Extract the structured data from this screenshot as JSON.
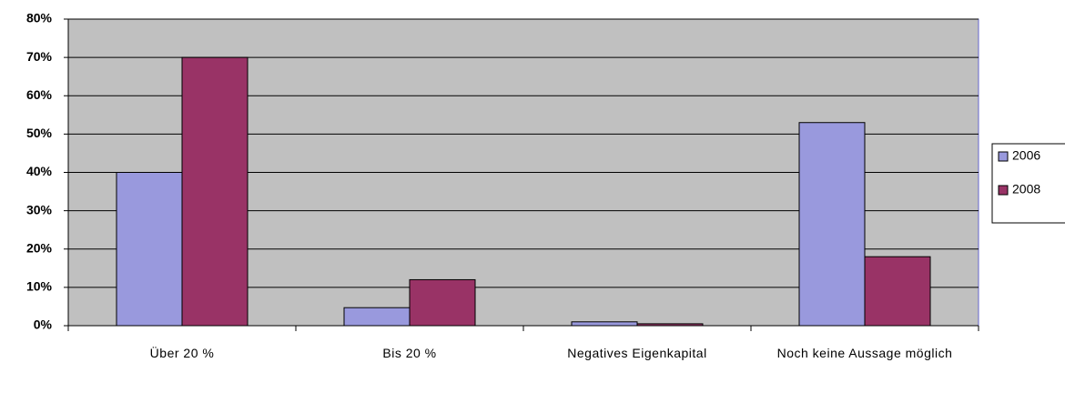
{
  "chart_data": {
    "type": "bar",
    "categories": [
      "Über 20 %",
      "Bis 20 %",
      "Negatives Eigenkapital",
      "Noch keine Aussage möglich"
    ],
    "series": [
      {
        "name": "2006",
        "color": "#9999dd",
        "values": [
          40,
          4.7,
          1,
          53
        ]
      },
      {
        "name": "2008",
        "color": "#993366",
        "values": [
          70,
          12,
          0.5,
          18
        ]
      }
    ],
    "ylim": [
      0,
      80
    ],
    "yticks": [
      {
        "value": 0,
        "label": "0%"
      },
      {
        "value": 10,
        "label": "10%"
      },
      {
        "value": 20,
        "label": "20%"
      },
      {
        "value": 30,
        "label": "30%"
      },
      {
        "value": 40,
        "label": "40%"
      },
      {
        "value": 50,
        "label": "50%"
      },
      {
        "value": 60,
        "label": "60%"
      },
      {
        "value": 70,
        "label": "70%"
      },
      {
        "value": 80,
        "label": "80%"
      }
    ],
    "grid": true,
    "legend": "right"
  }
}
